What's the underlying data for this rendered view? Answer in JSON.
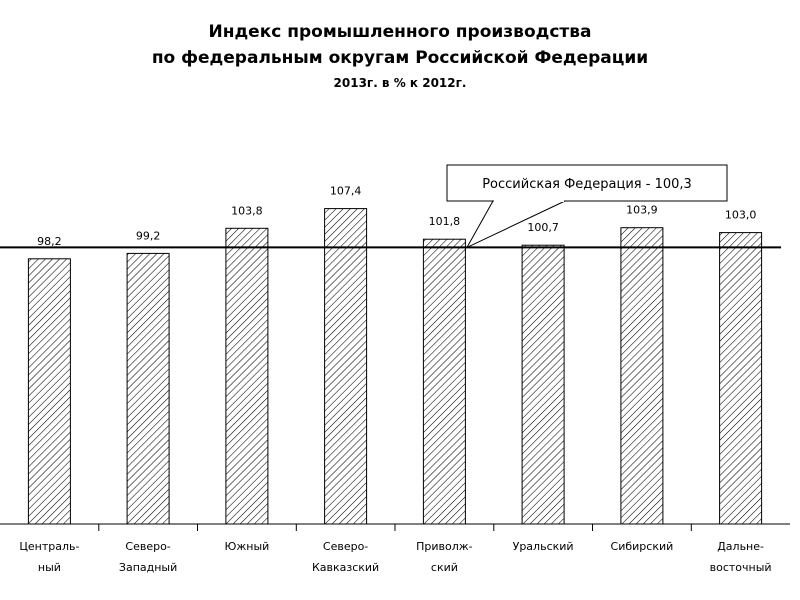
{
  "chart_data": {
    "type": "bar",
    "title": "Индекс промышленного производства",
    "subtitle": "по федеральным округам Российской Федерации",
    "subtitle2": "2013г. в % к 2012г.",
    "categories": [
      [
        "Централь-",
        "ный"
      ],
      [
        "Северо-",
        "Западный"
      ],
      [
        "Южный"
      ],
      [
        "Северо-",
        "Кавказский"
      ],
      [
        "Приволж-",
        "ский"
      ],
      [
        "Уральский"
      ],
      [
        "Сибирский"
      ],
      [
        "Дальне-",
        "восточный"
      ]
    ],
    "values": [
      98.2,
      99.2,
      103.8,
      107.4,
      101.8,
      100.7,
      103.9,
      103.0
    ],
    "value_labels": [
      "98,2",
      "99,2",
      "103,8",
      "107,4",
      "101,8",
      "100,7",
      "103,9",
      "103,0"
    ],
    "reference_line": {
      "value": 100.3,
      "label": "Российская Федерация - 100,3"
    },
    "grid": false,
    "legend": "none",
    "bar_pattern": "diagonal-hatch"
  }
}
